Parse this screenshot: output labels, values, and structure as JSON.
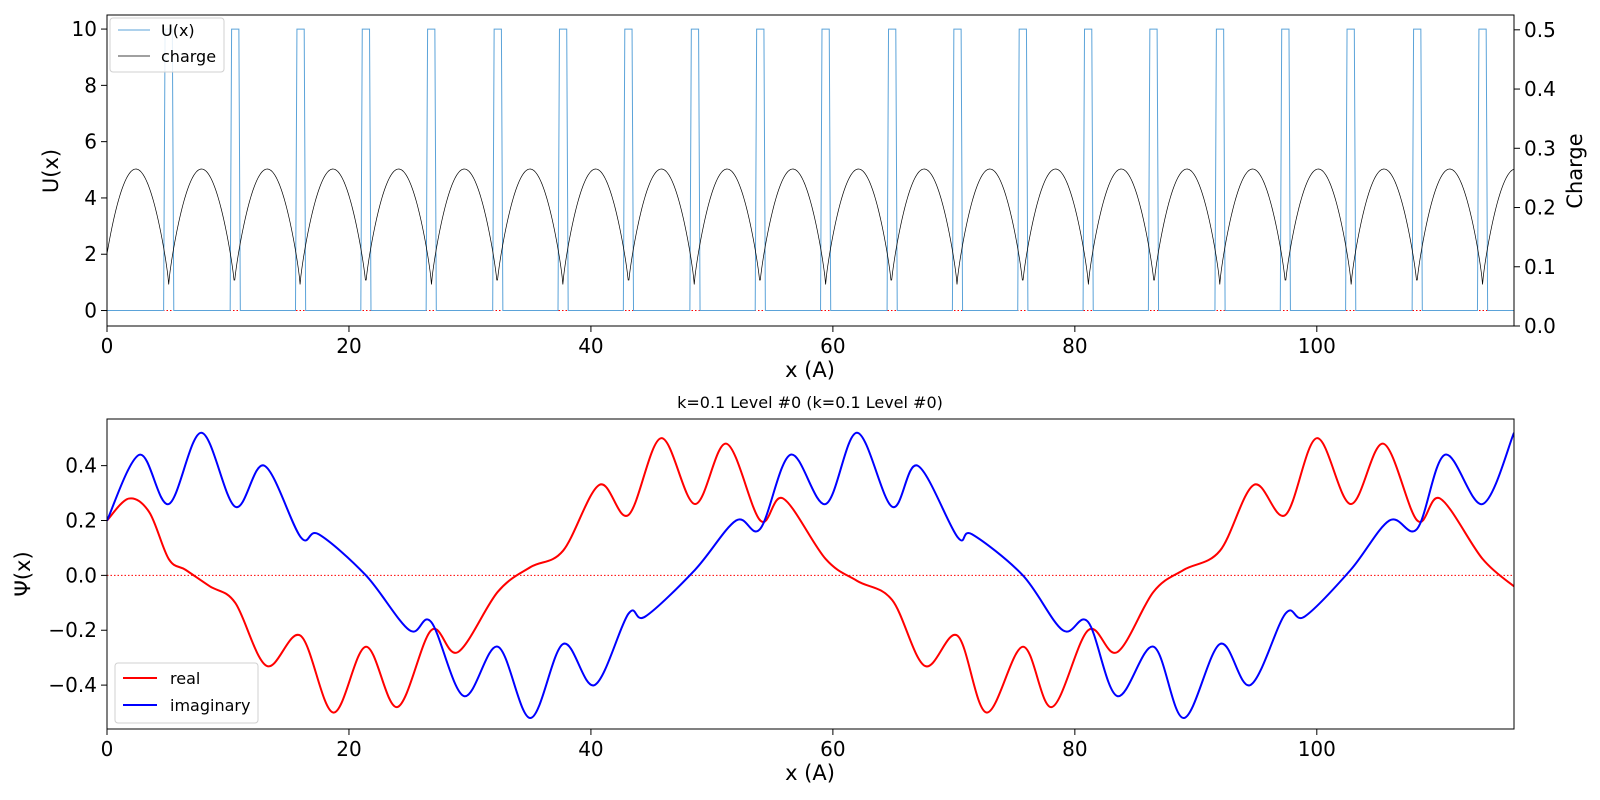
{
  "chart_data": [
    {
      "type": "line",
      "xlabel": "x (A)",
      "ylabel": "U(x)",
      "y2label": "Charge",
      "xlim": [
        0,
        116.3
      ],
      "ylim": [
        -0.55,
        10.5
      ],
      "y2lim": [
        0.0,
        0.525
      ],
      "xticks": [
        0,
        20,
        40,
        60,
        80,
        100
      ],
      "yticks": [
        0,
        2,
        4,
        6,
        8,
        10
      ],
      "y2ticks": [
        0.0,
        0.1,
        0.2,
        0.3,
        0.4,
        0.5
      ],
      "legend_position": "upper left",
      "grid": false,
      "period": 5.43,
      "series": [
        {
          "name": "U(x)",
          "color": "#5ba3d9",
          "axis": "left",
          "shape": "rectangular barriers of height 10 and width ~0.6 at x = 5.43*n, zero elsewhere",
          "barrier_height": 10,
          "barrier_width": 0.6,
          "barrier_centers": [
            5.1,
            10.6,
            16.0,
            21.4,
            26.8,
            32.3,
            37.7,
            43.1,
            48.6,
            54.0,
            59.4,
            64.9,
            70.3,
            75.7,
            81.1,
            86.5,
            92.0,
            97.4,
            102.8,
            108.3,
            113.7
          ]
        },
        {
          "name": "charge",
          "color": "#000000",
          "axis": "right",
          "shape": "periodic arches, max ~0.265 at cell centers, min ~0.07 at barriers",
          "max": 0.265,
          "min": 0.07
        }
      ],
      "reference_line": {
        "y": 0,
        "color": "#ff0000",
        "style": "dotted"
      }
    },
    {
      "type": "line",
      "title": "k=0.1 Level #0 (k=0.1 Level #0)",
      "xlabel": "x (A)",
      "ylabel": "Ψ(x)",
      "xlim": [
        0,
        116.3
      ],
      "ylim": [
        -0.56,
        0.57
      ],
      "xticks": [
        0,
        20,
        40,
        60,
        80,
        100
      ],
      "yticks": [
        -0.4,
        -0.2,
        0.0,
        0.2,
        0.4
      ],
      "legend_position": "lower left",
      "grid": false,
      "series": [
        {
          "name": "real",
          "color": "#ff0000",
          "x": [
            0,
            1.8,
            3.5,
            5.1,
            6.5,
            8.5,
            10.6,
            13.2,
            16.0,
            18.7,
            21.4,
            24.0,
            26.8,
            29.0,
            32.3,
            35.0,
            37.7,
            40.7,
            43.1,
            45.8,
            48.6,
            51.2,
            54.0,
            55.9,
            59.4,
            62.0,
            64.9,
            67.6,
            70.3,
            72.7,
            75.7,
            78.1,
            81.1,
            83.5,
            86.5,
            89.0,
            92.0,
            94.8,
            97.4,
            100.0,
            102.8,
            105.5,
            108.3,
            110.2,
            113.7,
            116.3
          ],
          "y": [
            0.2,
            0.28,
            0.23,
            0.06,
            0.02,
            -0.04,
            -0.1,
            -0.33,
            -0.22,
            -0.5,
            -0.26,
            -0.48,
            -0.2,
            -0.28,
            -0.06,
            0.03,
            0.09,
            0.33,
            0.22,
            0.5,
            0.26,
            0.48,
            0.2,
            0.28,
            0.06,
            -0.02,
            -0.09,
            -0.33,
            -0.22,
            -0.5,
            -0.26,
            -0.48,
            -0.2,
            -0.28,
            -0.06,
            0.02,
            0.09,
            0.33,
            0.22,
            0.5,
            0.26,
            0.48,
            0.2,
            0.28,
            0.06,
            -0.04
          ]
        },
        {
          "name": "imaginary",
          "color": "#0000ff",
          "x": [
            0,
            2.7,
            5.1,
            7.8,
            10.6,
            13.0,
            16.0,
            17.5,
            21.4,
            25.0,
            26.8,
            29.5,
            32.3,
            35.0,
            37.7,
            40.3,
            43.1,
            44.5,
            48.6,
            52.0,
            54.0,
            56.5,
            59.4,
            62.0,
            64.9,
            67.0,
            70.3,
            71.5,
            75.7,
            79.0,
            81.1,
            83.5,
            86.5,
            89.0,
            92.0,
            94.5,
            97.4,
            99.0,
            102.8,
            106.0,
            108.3,
            110.6,
            113.7,
            116.3
          ],
          "y": [
            0.2,
            0.44,
            0.26,
            0.52,
            0.25,
            0.4,
            0.14,
            0.15,
            0.0,
            -0.2,
            -0.17,
            -0.44,
            -0.26,
            -0.52,
            -0.25,
            -0.4,
            -0.14,
            -0.15,
            0.02,
            0.2,
            0.17,
            0.44,
            0.26,
            0.52,
            0.25,
            0.4,
            0.14,
            0.15,
            0.0,
            -0.2,
            -0.17,
            -0.44,
            -0.26,
            -0.52,
            -0.25,
            -0.4,
            -0.14,
            -0.15,
            0.02,
            0.2,
            0.17,
            0.44,
            0.26,
            0.52
          ]
        }
      ],
      "reference_line": {
        "y": 0,
        "color": "#ff0000",
        "style": "dotted"
      }
    }
  ]
}
